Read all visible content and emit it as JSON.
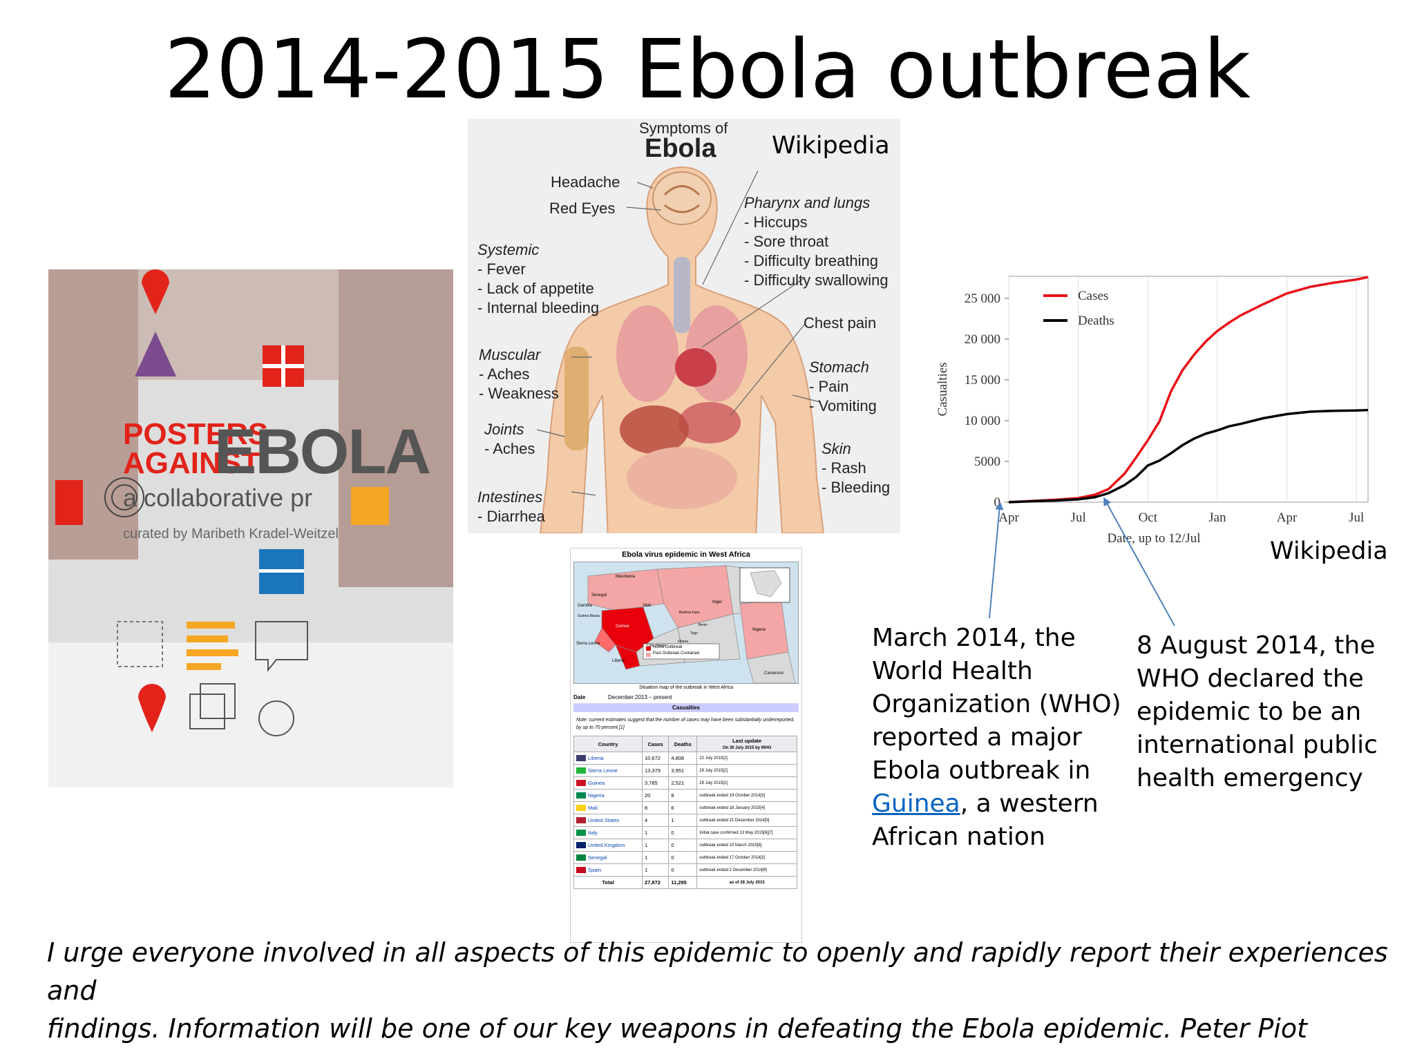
{
  "slide": {
    "title": "2014-2015 Ebola outbreak",
    "source_label_1": "Wikipedia",
    "source_label_2": "Wikipedia",
    "callout_march": {
      "line1": "March 2014, the",
      "line2": "World Health",
      "line3": "Organization (WHO)",
      "line4": "reported a major",
      "line5": "Ebola outbreak in",
      "link": "Guinea",
      "line6_rest": ", a western",
      "line7": "African nation"
    },
    "callout_august": {
      "line1": "8 August 2014, the",
      "line2": "WHO declared the",
      "line3": "epidemic to be an",
      "line4": "international public",
      "line5": "health emergency"
    },
    "quote_line1": "I urge everyone involved in all aspects of this epidemic to openly and rapidly report their experiences and",
    "quote_line2": "findings. Information will be one of our key weapons in defeating the Ebola epidemic.  Peter Piot"
  },
  "poster": {
    "line1": "POSTERS",
    "line2": "AGAINST",
    "word": "EBOLA",
    "subtitle": "a collaborative pr",
    "curator": "curated by Maribeth Kradel-Weitzel"
  },
  "symptoms": {
    "heading_small": "Symptoms of",
    "heading_big": "Ebola",
    "headache": "Headache",
    "red_eyes": "Red Eyes",
    "systemic": "Systemic",
    "fever": "- Fever",
    "appetite": "- Lack of appetite",
    "bleeding_int": "- Internal bleeding",
    "muscular": "Muscular",
    "aches1": "- Aches",
    "weakness": "- Weakness",
    "joints": "Joints",
    "aches2": "- Aches",
    "intestines": "Intestines",
    "diarrhea": "- Diarrhea",
    "pharynx": "Pharynx and lungs",
    "hiccups": "- Hiccups",
    "sore_throat": "- Sore throat",
    "diff_breathing": "- Difficulty breathing",
    "diff_swallowing": "- Difficulty swallowing",
    "chest_pain": "Chest pain",
    "stomach": "Stomach",
    "pain": "- Pain",
    "vomiting": "- Vomiting",
    "skin": "Skin",
    "rash": "- Rash",
    "bleeding": "- Bleeding"
  },
  "infobox": {
    "title": "Ebola virus epidemic in West Africa",
    "map_labels": [
      "Mauritania",
      "Senegal",
      "Gambia",
      "Guinea Bissau",
      "Mali",
      "Niger",
      "Burkina Faso",
      "Sierra Leone",
      "Liberia",
      "Côte d'Ivoire",
      "Ghana",
      "Togo",
      "Benin",
      "Nigeria",
      "Cameroon",
      "Guinea"
    ],
    "legend_active": "Active Outbreak",
    "legend_past": "Past Outbreak Contained",
    "map_caption": "Situation map of the outbreak in West Africa",
    "date_label": "Date",
    "date_value": "December 2013 – present",
    "casualties": "Casualties",
    "note": "Note: current estimates suggest that the number of cases may have been substantially underreported, by up to 70 percent.[1]",
    "col_country": "Country",
    "col_cases": "Cases",
    "col_deaths": "Deaths",
    "col_update": "Last update",
    "col_update_sub": "On 30 July 2015 by WHO",
    "rows": [
      {
        "country": "Liberia",
        "cases": "10,672",
        "deaths": "4,808",
        "update": "22 July 2015[2]",
        "flag": "#3c3b6e"
      },
      {
        "country": "Sierra Leone",
        "cases": "13,379",
        "deaths": "3,951",
        "update": "28 July 2015[2]",
        "flag": "#1eb53a"
      },
      {
        "country": "Guinea",
        "cases": "3,785",
        "deaths": "2,521",
        "update": "28 July 2015[2]",
        "flag": "#ce1126"
      },
      {
        "country": "Nigeria",
        "cases": "20",
        "deaths": "8",
        "update": "outbreak ended 19 October 2014[3]",
        "flag": "#008751"
      },
      {
        "country": "Mali",
        "cases": "8",
        "deaths": "6",
        "update": "outbreak ended 18 January 2015[4]",
        "flag": "#fcd116"
      },
      {
        "country": "United States",
        "cases": "4",
        "deaths": "1",
        "update": "outbreak ended 21 December 2014[5]",
        "flag": "#b22234"
      },
      {
        "country": "Italy",
        "cases": "1",
        "deaths": "0",
        "update": "Initial case confirmed 13 May 2015[6][7]",
        "flag": "#009246"
      },
      {
        "country": "United Kingdom",
        "cases": "1",
        "deaths": "0",
        "update": "outbreak ended 10 March 2015[8]",
        "flag": "#012169"
      },
      {
        "country": "Senegal",
        "cases": "1",
        "deaths": "0",
        "update": "outbreak ended 17 October 2014[3]",
        "flag": "#00853f"
      },
      {
        "country": "Spain",
        "cases": "1",
        "deaths": "0",
        "update": "outbreak ended 2 December 2014[9]",
        "flag": "#c60b1e"
      }
    ],
    "total_label": "Total",
    "total_cases": "27,872",
    "total_deaths": "11,295",
    "total_update": "as of 28 July 2015"
  },
  "chart_data": {
    "type": "line",
    "title": "",
    "xlabel": "Date, up to 12/Jul",
    "ylabel": "Casualties",
    "x_ticks": [
      "Apr",
      "Jul",
      "Oct",
      "Jan",
      "Apr",
      "Jul"
    ],
    "y_ticks": [
      "0",
      "5000",
      "10 000",
      "15 000",
      "20 000",
      "25 000"
    ],
    "y_tick_values": [
      0,
      5000,
      10000,
      15000,
      20000,
      25000
    ],
    "ylim": [
      0,
      27700
    ],
    "xlim": [
      0,
      15.5
    ],
    "grid": true,
    "legend_position": "top-left",
    "series": [
      {
        "name": "Cases",
        "color": "#e8101a",
        "x": [
          0,
          1,
          2,
          3,
          3.7,
          4.3,
          5,
          5.5,
          6,
          6.5,
          7,
          7.5,
          8,
          8.5,
          9,
          9.5,
          10,
          11,
          12,
          13,
          14,
          15,
          15.5
        ],
        "y": [
          0,
          150,
          300,
          500,
          900,
          1600,
          3500,
          5500,
          7600,
          9900,
          13600,
          16200,
          18100,
          19700,
          21000,
          22000,
          22900,
          24300,
          25600,
          26400,
          26900,
          27300,
          27600
        ]
      },
      {
        "name": "Deaths",
        "color": "#000000",
        "x": [
          0,
          1,
          2,
          3,
          3.7,
          4.3,
          5,
          5.5,
          6,
          6.5,
          7,
          7.5,
          8,
          8.5,
          9,
          9.5,
          10,
          11,
          12,
          13,
          14,
          15,
          15.5
        ],
        "y": [
          0,
          100,
          200,
          350,
          600,
          1100,
          2100,
          3100,
          4500,
          5100,
          6000,
          7000,
          7800,
          8400,
          8800,
          9300,
          9600,
          10300,
          10800,
          11100,
          11200,
          11250,
          11300
        ]
      }
    ]
  }
}
